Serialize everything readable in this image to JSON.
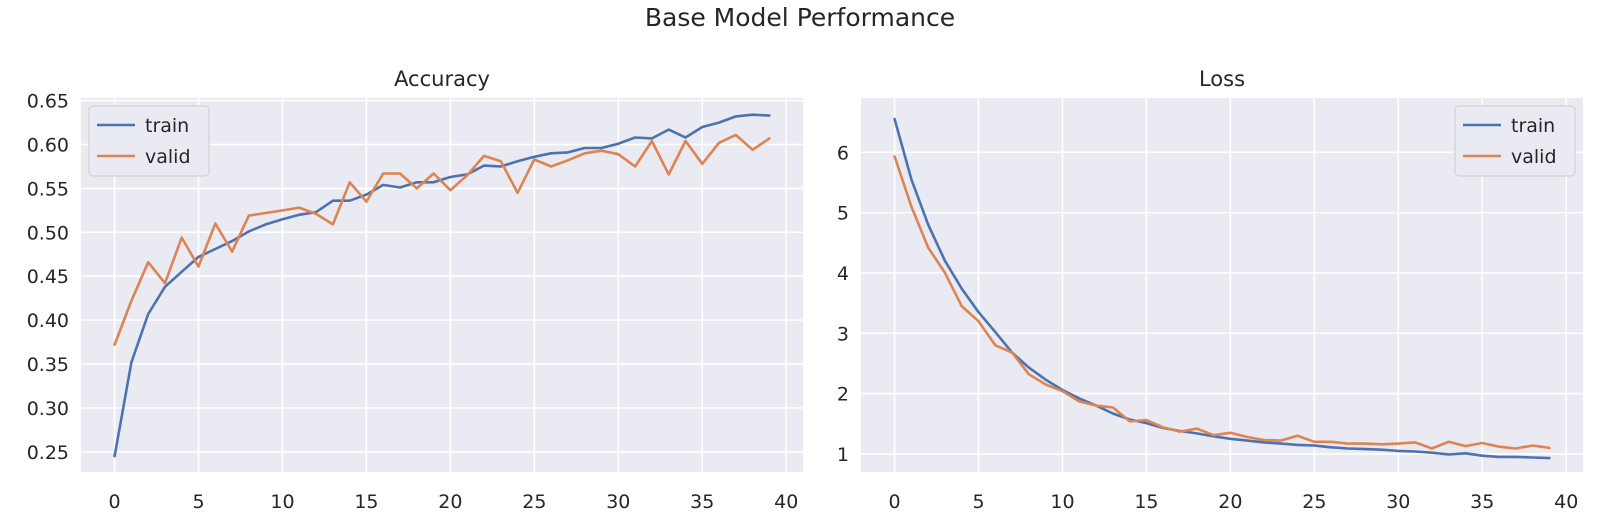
{
  "figure_title": "Base Model Performance",
  "colors": {
    "background": "#ffffff",
    "axes_face": "#eaeaf2",
    "grid": "#ffffff",
    "train": "#4c72b0",
    "valid": "#dd8452",
    "text": "#262626"
  },
  "chart_data": [
    {
      "type": "line",
      "title": "Accuracy",
      "xlabel": "",
      "ylabel": "",
      "xlim": [
        -2,
        41
      ],
      "ylim": [
        0.227,
        0.653
      ],
      "xticks": [
        0,
        5,
        10,
        15,
        20,
        25,
        30,
        35,
        40
      ],
      "xtick_labels": [
        "0",
        "5",
        "10",
        "15",
        "20",
        "25",
        "30",
        "35",
        "40"
      ],
      "yticks": [
        0.25,
        0.3,
        0.35,
        0.4,
        0.45,
        0.5,
        0.55,
        0.6,
        0.65
      ],
      "ytick_labels": [
        "0.25",
        "0.30",
        "0.35",
        "0.40",
        "0.45",
        "0.50",
        "0.55",
        "0.60",
        "0.65"
      ],
      "grid": true,
      "legend": "upper-left",
      "x": [
        0,
        1,
        2,
        3,
        4,
        5,
        6,
        7,
        8,
        9,
        10,
        11,
        12,
        13,
        14,
        15,
        16,
        17,
        18,
        19,
        20,
        21,
        22,
        23,
        24,
        25,
        26,
        27,
        28,
        29,
        30,
        31,
        32,
        33,
        34,
        35,
        36,
        37,
        38,
        39
      ],
      "series": [
        {
          "name": "train",
          "color": "#4c72b0",
          "values": [
            0.245,
            0.352,
            0.407,
            0.438,
            0.455,
            0.472,
            0.481,
            0.49,
            0.501,
            0.509,
            0.515,
            0.52,
            0.523,
            0.536,
            0.536,
            0.543,
            0.554,
            0.551,
            0.557,
            0.557,
            0.563,
            0.566,
            0.576,
            0.575,
            0.581,
            0.586,
            0.59,
            0.591,
            0.596,
            0.596,
            0.601,
            0.608,
            0.607,
            0.617,
            0.608,
            0.62,
            0.625,
            0.632,
            0.634,
            0.633
          ]
        },
        {
          "name": "valid",
          "color": "#dd8452",
          "values": [
            0.372,
            0.422,
            0.466,
            0.442,
            0.494,
            0.461,
            0.51,
            0.478,
            0.519,
            0.522,
            0.525,
            0.528,
            0.521,
            0.509,
            0.557,
            0.535,
            0.567,
            0.567,
            0.55,
            0.567,
            0.548,
            0.565,
            0.587,
            0.581,
            0.545,
            0.583,
            0.575,
            0.582,
            0.59,
            0.593,
            0.589,
            0.575,
            0.604,
            0.566,
            0.604,
            0.578,
            0.602,
            0.611,
            0.594,
            0.607
          ]
        }
      ]
    },
    {
      "type": "line",
      "title": "Loss",
      "xlabel": "",
      "ylabel": "",
      "xlim": [
        -2,
        41
      ],
      "ylim": [
        0.7,
        6.9
      ],
      "xticks": [
        0,
        5,
        10,
        15,
        20,
        25,
        30,
        35,
        40
      ],
      "xtick_labels": [
        "0",
        "5",
        "10",
        "15",
        "20",
        "25",
        "30",
        "35",
        "40"
      ],
      "yticks": [
        1,
        2,
        3,
        4,
        5,
        6
      ],
      "ytick_labels": [
        "1",
        "2",
        "3",
        "4",
        "5",
        "6"
      ],
      "grid": true,
      "legend": "upper-right",
      "x": [
        0,
        1,
        2,
        3,
        4,
        5,
        6,
        7,
        8,
        9,
        10,
        11,
        12,
        13,
        14,
        15,
        16,
        17,
        18,
        19,
        20,
        21,
        22,
        23,
        24,
        25,
        26,
        27,
        28,
        29,
        30,
        31,
        32,
        33,
        34,
        35,
        36,
        37,
        38,
        39
      ],
      "series": [
        {
          "name": "train",
          "color": "#4c72b0",
          "values": [
            6.55,
            5.55,
            4.8,
            4.2,
            3.74,
            3.35,
            3.02,
            2.68,
            2.43,
            2.23,
            2.06,
            1.92,
            1.8,
            1.67,
            1.57,
            1.51,
            1.43,
            1.38,
            1.34,
            1.29,
            1.25,
            1.22,
            1.19,
            1.17,
            1.15,
            1.14,
            1.11,
            1.09,
            1.08,
            1.07,
            1.05,
            1.04,
            1.02,
            0.99,
            1.01,
            0.97,
            0.95,
            0.95,
            0.94,
            0.93
          ]
        },
        {
          "name": "valid",
          "color": "#dd8452",
          "values": [
            5.93,
            5.1,
            4.42,
            4.0,
            3.45,
            3.2,
            2.8,
            2.68,
            2.32,
            2.15,
            2.04,
            1.87,
            1.8,
            1.77,
            1.54,
            1.56,
            1.44,
            1.37,
            1.42,
            1.31,
            1.35,
            1.28,
            1.23,
            1.22,
            1.3,
            1.2,
            1.2,
            1.17,
            1.17,
            1.16,
            1.17,
            1.19,
            1.09,
            1.2,
            1.13,
            1.18,
            1.12,
            1.09,
            1.14,
            1.1
          ]
        }
      ]
    }
  ]
}
